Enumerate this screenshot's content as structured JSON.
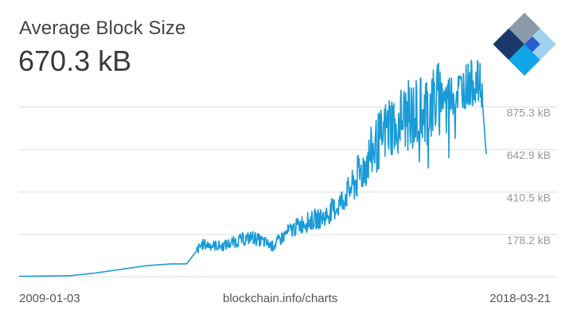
{
  "header": {
    "title": "Average Block Size",
    "value": "670.3 kB"
  },
  "footer": {
    "start_date": "2009-01-03",
    "source": "blockchain.info/charts",
    "end_date": "2018-03-21"
  },
  "colors": {
    "line": "#1a9bd7",
    "grid": "#dddddd",
    "logo_dark": "#1b3a6b",
    "logo_gray": "#8a9aa8",
    "logo_blue": "#2b5bd1",
    "logo_light": "#11a6e8",
    "logo_pale": "#9fd0ee"
  },
  "chart_data": {
    "type": "line",
    "title": "Average Block Size",
    "xlabel": "",
    "ylabel": "",
    "y_unit": "kB",
    "ylim": [
      0,
      1100
    ],
    "y_ticks": [
      {
        "value": 178.2,
        "label": "178.2 kB"
      },
      {
        "value": 410.5,
        "label": "410.5 kB"
      },
      {
        "value": 642.9,
        "label": "642.9 kB"
      },
      {
        "value": 875.3,
        "label": "875.3 kB"
      }
    ],
    "x_range": [
      "2009-01-03",
      "2018-03-21"
    ],
    "series": [
      {
        "name": "Average Block Size (kB)",
        "x": [
          2009.0,
          2010.0,
          2010.5,
          2011.0,
          2011.5,
          2012.0,
          2012.3,
          2012.6,
          2013.0,
          2013.3,
          2013.6,
          2014.0,
          2014.3,
          2014.6,
          2015.0,
          2015.3,
          2015.6,
          2016.0,
          2016.3,
          2016.6,
          2017.0,
          2017.3,
          2017.6,
          2017.8,
          2018.0,
          2018.1,
          2018.2
        ],
        "values": [
          2,
          5,
          20,
          40,
          60,
          70,
          70,
          180,
          170,
          200,
          220,
          170,
          250,
          300,
          330,
          400,
          520,
          720,
          850,
          890,
          940,
          1000,
          1020,
          1060,
          1080,
          1050,
          670
        ]
      }
    ]
  }
}
